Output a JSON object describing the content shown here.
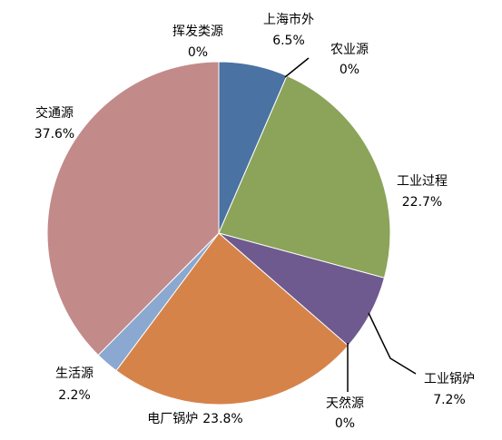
{
  "chart_data": {
    "type": "pie",
    "categories": [
      "上海市外",
      "农业源",
      "工业过程",
      "工业锅炉",
      "天然源",
      "电厂锅炉",
      "生活源",
      "交通源",
      "挥发类源"
    ],
    "values": [
      6.5,
      0,
      22.7,
      7.2,
      0,
      23.8,
      2.2,
      37.6,
      0
    ],
    "value_labels": [
      "6.5%",
      "0%",
      "22.7%",
      "7.2%",
      "0%",
      "23.8%",
      "2.2%",
      "37.6%",
      "0%"
    ],
    "colors": [
      "#4a72a2",
      "#a64d4a",
      "#8ba45a",
      "#6e5a8e",
      "#3d97b0",
      "#d6834a",
      "#8aa8d0",
      "#c38a8a",
      "#9fb96a"
    ]
  }
}
